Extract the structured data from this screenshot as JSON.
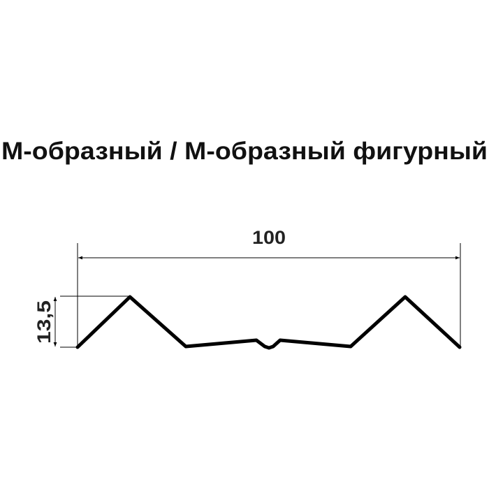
{
  "title": "М-образный / М-образный фигурный",
  "dimensions": {
    "width_label": "100",
    "height_label": "13,5"
  },
  "colors": {
    "line": "#000000",
    "text": "#111111",
    "background": "#ffffff"
  }
}
